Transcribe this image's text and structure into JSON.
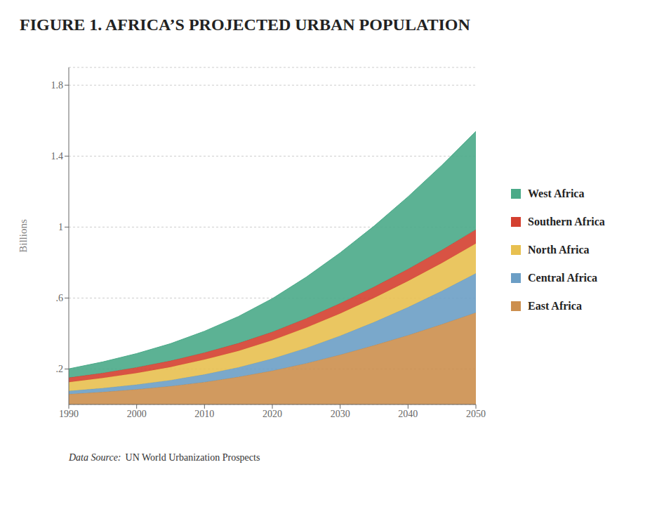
{
  "chart_data": {
    "type": "area",
    "title": "FIGURE 1. AFRICA’S PROJECTED URBAN POPULATION",
    "y_label": "Billions",
    "annotations": [
      "Data Source:",
      "UN World Urbanization Prospects"
    ],
    "stacked": true,
    "grid": true,
    "legend": "right",
    "x": [
      1990,
      1995,
      2000,
      2005,
      2010,
      2015,
      2020,
      2025,
      2030,
      2035,
      2040,
      2045,
      2050
    ],
    "series": [
      {
        "name": "East Africa",
        "color": "#cc8f4e",
        "values": [
          0.058,
          0.07,
          0.085,
          0.103,
          0.126,
          0.155,
          0.19,
          0.232,
          0.28,
          0.333,
          0.39,
          0.452,
          0.518
        ]
      },
      {
        "name": "Central Africa",
        "color": "#6b9ec5",
        "values": [
          0.018,
          0.022,
          0.027,
          0.034,
          0.043,
          0.054,
          0.068,
          0.086,
          0.107,
          0.131,
          0.158,
          0.188,
          0.221
        ]
      },
      {
        "name": "North Africa",
        "color": "#e8c050",
        "values": [
          0.05,
          0.057,
          0.065,
          0.074,
          0.084,
          0.093,
          0.104,
          0.115,
          0.126,
          0.137,
          0.148,
          0.158,
          0.168
        ]
      },
      {
        "name": "Southern Africa",
        "color": "#d44030",
        "values": [
          0.025,
          0.028,
          0.032,
          0.035,
          0.039,
          0.043,
          0.047,
          0.052,
          0.057,
          0.062,
          0.067,
          0.073,
          0.079
        ]
      },
      {
        "name": "West Africa",
        "color": "#4aaa88",
        "values": [
          0.05,
          0.063,
          0.078,
          0.097,
          0.121,
          0.151,
          0.188,
          0.233,
          0.285,
          0.343,
          0.408,
          0.478,
          0.554
        ]
      }
    ],
    "xlim": [
      1990,
      2050
    ],
    "xticks": [
      1990,
      2000,
      2010,
      2020,
      2030,
      2040,
      2050
    ],
    "ylim": [
      0,
      1.9
    ],
    "yticks": [
      {
        "value": 0.2,
        "label": ".2"
      },
      {
        "value": 0.6,
        "label": ".6"
      },
      1,
      1.4,
      1.8
    ]
  }
}
